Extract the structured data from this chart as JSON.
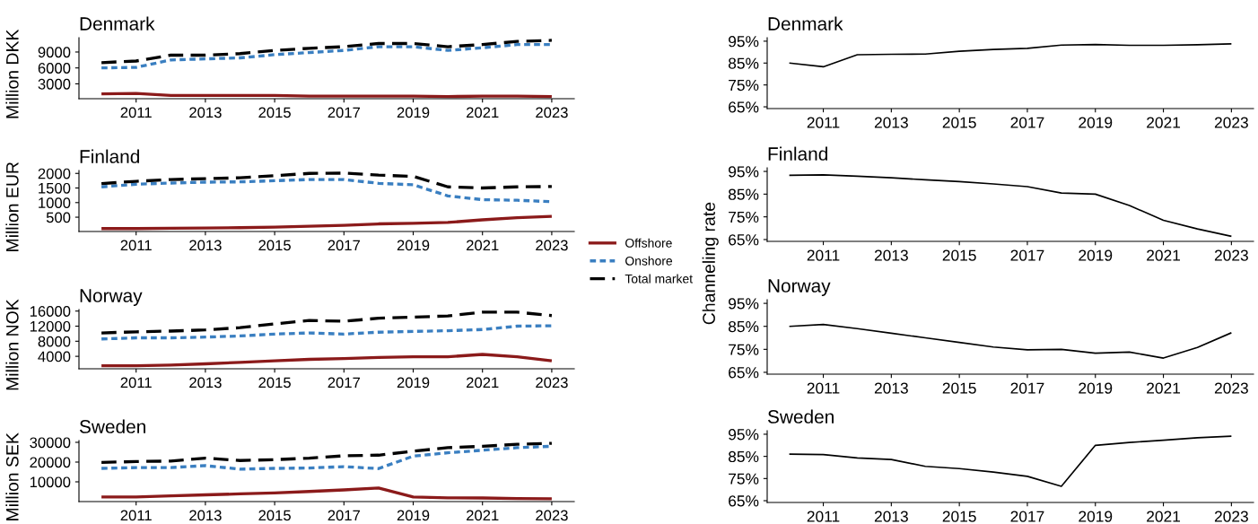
{
  "chart_data": [
    {
      "type": "line",
      "title": "Denmark",
      "ylabel": "Million DKK",
      "x": [
        2010,
        2011,
        2012,
        2013,
        2014,
        2015,
        2016,
        2017,
        2018,
        2019,
        2020,
        2021,
        2022,
        2023
      ],
      "xlim": [
        2009.35,
        2023.65
      ],
      "xticks": [
        2011,
        2013,
        2015,
        2017,
        2019,
        2021,
        2023
      ],
      "ylim": [
        200,
        11700
      ],
      "yticks": [
        3000,
        6000,
        9000
      ],
      "legend": "right",
      "grid": false,
      "series": [
        {
          "name": "Offshore",
          "color": "#8b1a1a",
          "line_style": "solid",
          "values": [
            1100,
            1200,
            800,
            800,
            800,
            800,
            700,
            700,
            700,
            700,
            600,
            700,
            700,
            600
          ]
        },
        {
          "name": "Onshore",
          "color": "#3a7fc1",
          "line_style": "dotted",
          "values": [
            6000,
            6100,
            7500,
            7700,
            7900,
            8500,
            8900,
            9300,
            10000,
            10000,
            9300,
            9800,
            10400,
            10400
          ]
        },
        {
          "name": "Total market",
          "color": "#000000",
          "line_style": "dashed",
          "values": [
            7000,
            7300,
            8400,
            8400,
            8700,
            9300,
            9700,
            10000,
            10600,
            10600,
            10000,
            10400,
            11000,
            11200
          ]
        }
      ]
    },
    {
      "type": "line",
      "title": "Finland",
      "ylabel": "Million EUR",
      "x": [
        2010,
        2011,
        2012,
        2013,
        2014,
        2015,
        2016,
        2017,
        2018,
        2019,
        2020,
        2021,
        2022,
        2023
      ],
      "xlim": [
        2009.35,
        2023.65
      ],
      "xticks": [
        2011,
        2013,
        2015,
        2017,
        2019,
        2021,
        2023
      ],
      "ylim": [
        10,
        2100
      ],
      "yticks": [
        500,
        1000,
        1500,
        2000
      ],
      "legend": "right",
      "grid": false,
      "series": [
        {
          "name": "Offshore",
          "color": "#8b1a1a",
          "line_style": "solid",
          "values": [
            110,
            110,
            120,
            130,
            140,
            160,
            190,
            220,
            270,
            290,
            320,
            410,
            480,
            530
          ]
        },
        {
          "name": "Onshore",
          "color": "#3a7fc1",
          "line_style": "dotted",
          "values": [
            1540,
            1630,
            1670,
            1700,
            1710,
            1750,
            1790,
            1790,
            1660,
            1610,
            1230,
            1100,
            1080,
            1030
          ]
        },
        {
          "name": "Total market",
          "color": "#000000",
          "line_style": "dashed",
          "values": [
            1650,
            1730,
            1790,
            1820,
            1850,
            1920,
            2000,
            2010,
            1940,
            1900,
            1540,
            1500,
            1540,
            1550
          ]
        }
      ]
    },
    {
      "type": "line",
      "title": "Norway",
      "ylabel": "Million NOK",
      "x": [
        2010,
        2011,
        2012,
        2013,
        2014,
        2015,
        2016,
        2017,
        2018,
        2019,
        2020,
        2021,
        2022,
        2023
      ],
      "xlim": [
        2009.35,
        2023.65
      ],
      "xticks": [
        2011,
        2013,
        2015,
        2017,
        2019,
        2021,
        2023
      ],
      "ylim": [
        700,
        16400
      ],
      "yticks": [
        4000,
        8000,
        12000,
        16000
      ],
      "legend": "right",
      "grid": false,
      "series": [
        {
          "name": "Offshore",
          "color": "#8b1a1a",
          "line_style": "solid",
          "values": [
            1500,
            1500,
            1700,
            2000,
            2400,
            2800,
            3200,
            3400,
            3700,
            3900,
            3900,
            4500,
            3900,
            2800
          ]
        },
        {
          "name": "Onshore",
          "color": "#3a7fc1",
          "line_style": "dotted",
          "values": [
            8600,
            8900,
            8900,
            9100,
            9400,
            9900,
            10200,
            9900,
            10400,
            10600,
            10800,
            11100,
            12000,
            12100
          ]
        },
        {
          "name": "Total market",
          "color": "#000000",
          "line_style": "dashed",
          "values": [
            10200,
            10500,
            10700,
            11000,
            11600,
            12600,
            13500,
            13300,
            14100,
            14400,
            14700,
            15700,
            15700,
            14800
          ]
        }
      ]
    },
    {
      "type": "line",
      "title": "Sweden",
      "ylabel": "Million SEK",
      "x": [
        2010,
        2011,
        2012,
        2013,
        2014,
        2015,
        2016,
        2017,
        2018,
        2019,
        2020,
        2021,
        2022,
        2023
      ],
      "xlim": [
        2009.35,
        2023.65
      ],
      "xticks": [
        2011,
        2013,
        2015,
        2017,
        2019,
        2021,
        2023
      ],
      "ylim": [
        0,
        30900
      ],
      "yticks": [
        10000,
        20000,
        30000
      ],
      "legend": "right",
      "grid": false,
      "series": [
        {
          "name": "Offshore",
          "color": "#8b1a1a",
          "line_style": "solid",
          "values": [
            2300,
            2300,
            2900,
            3400,
            3900,
            4400,
            5100,
            5900,
            6900,
            2300,
            1900,
            1800,
            1500,
            1400
          ]
        },
        {
          "name": "Onshore",
          "color": "#3a7fc1",
          "line_style": "dotted",
          "values": [
            16800,
            17200,
            17200,
            18200,
            16400,
            16800,
            17000,
            17700,
            16700,
            23000,
            24700,
            26000,
            27300,
            28000
          ]
        },
        {
          "name": "Total market",
          "color": "#000000",
          "line_style": "dashed",
          "values": [
            19800,
            20300,
            20500,
            22000,
            20800,
            21200,
            22000,
            23200,
            23500,
            25500,
            27300,
            28000,
            29000,
            29500
          ]
        }
      ]
    },
    {
      "type": "line",
      "title": "Denmark",
      "x": [
        2010,
        2011,
        2012,
        2013,
        2014,
        2015,
        2016,
        2017,
        2018,
        2019,
        2020,
        2021,
        2022,
        2023
      ],
      "xlim": [
        2009.35,
        2023.65
      ],
      "xticks": [
        2011,
        2013,
        2015,
        2017,
        2019,
        2021,
        2023
      ],
      "ylim": [
        64.2,
        96.6
      ],
      "yticks": [
        {
          "value": 65,
          "label": "65%"
        },
        {
          "value": 75,
          "label": "75%"
        },
        {
          "value": 85,
          "label": "85%"
        },
        {
          "value": 95,
          "label": "95%"
        }
      ],
      "grid": false,
      "series": [
        {
          "color": "#000000",
          "line_style": "solid",
          "values": [
            85,
            83.3,
            88.8,
            89,
            89.1,
            90.4,
            91.2,
            91.7,
            93.2,
            93.5,
            93.1,
            93.1,
            93.4,
            93.8
          ]
        }
      ]
    },
    {
      "type": "line",
      "title": "Finland",
      "ylabel": "Channeling rate",
      "x": [
        2010,
        2011,
        2012,
        2013,
        2014,
        2015,
        2016,
        2017,
        2018,
        2019,
        2020,
        2021,
        2022,
        2023
      ],
      "xlim": [
        2009.35,
        2023.65
      ],
      "xticks": [
        2011,
        2013,
        2015,
        2017,
        2019,
        2021,
        2023
      ],
      "ylim": [
        64.2,
        96.6
      ],
      "yticks": [
        {
          "value": 65,
          "label": "65%"
        },
        {
          "value": 75,
          "label": "75%"
        },
        {
          "value": 85,
          "label": "85%"
        },
        {
          "value": 95,
          "label": "95%"
        }
      ],
      "grid": false,
      "series": [
        {
          "color": "#000000",
          "line_style": "solid",
          "values": [
            93.3,
            93.5,
            92.9,
            92.2,
            91.3,
            90.5,
            89.5,
            88.3,
            85.5,
            85,
            80,
            73.5,
            69.7,
            66.4
          ]
        }
      ]
    },
    {
      "type": "line",
      "title": "Norway",
      "x": [
        2010,
        2011,
        2012,
        2013,
        2014,
        2015,
        2016,
        2017,
        2018,
        2019,
        2020,
        2021,
        2022,
        2023
      ],
      "xlim": [
        2009.35,
        2023.65
      ],
      "xticks": [
        2011,
        2013,
        2015,
        2017,
        2019,
        2021,
        2023
      ],
      "ylim": [
        64.2,
        96.6
      ],
      "yticks": [
        {
          "value": 65,
          "label": "65%"
        },
        {
          "value": 75,
          "label": "75%"
        },
        {
          "value": 85,
          "label": "85%"
        },
        {
          "value": 95,
          "label": "95%"
        }
      ],
      "grid": false,
      "series": [
        {
          "color": "#000000",
          "line_style": "solid",
          "values": [
            85,
            85.8,
            84,
            82,
            80,
            78,
            76,
            74.8,
            75,
            73.3,
            73.8,
            71.2,
            75.8,
            82.2
          ]
        }
      ]
    },
    {
      "type": "line",
      "title": "Sweden",
      "x": [
        2010,
        2011,
        2012,
        2013,
        2014,
        2015,
        2016,
        2017,
        2018,
        2019,
        2020,
        2021,
        2022,
        2023
      ],
      "xlim": [
        2009.35,
        2023.65
      ],
      "xticks": [
        2011,
        2013,
        2015,
        2017,
        2019,
        2021,
        2023
      ],
      "ylim": [
        64.2,
        96.6
      ],
      "yticks": [
        {
          "value": 65,
          "label": "65%"
        },
        {
          "value": 75,
          "label": "75%"
        },
        {
          "value": 85,
          "label": "85%"
        },
        {
          "value": 95,
          "label": "95%"
        }
      ],
      "grid": false,
      "series": [
        {
          "color": "#000000",
          "line_style": "solid",
          "values": [
            86,
            85.8,
            84.3,
            83.6,
            80.5,
            79.5,
            77.9,
            76,
            71.5,
            90,
            91.3,
            92.3,
            93.4,
            94.1
          ]
        }
      ]
    }
  ]
}
